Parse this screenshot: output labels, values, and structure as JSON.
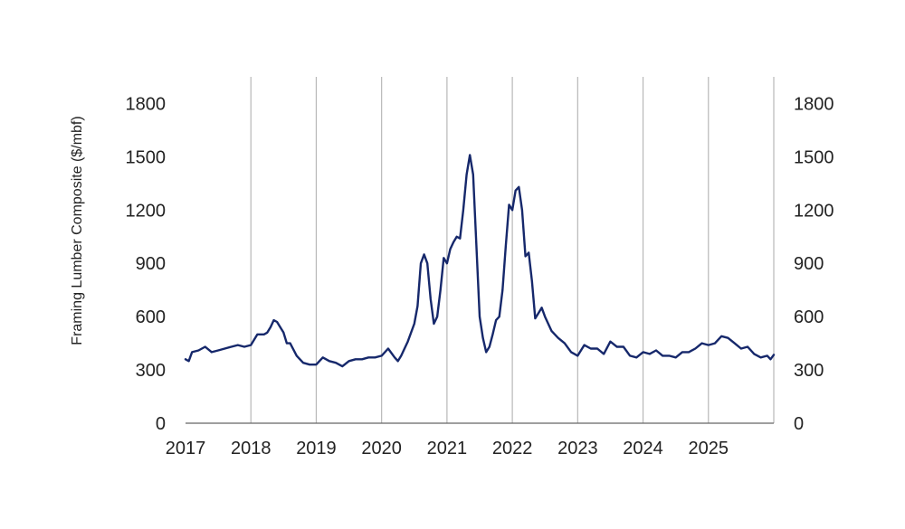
{
  "chart_data": {
    "type": "line",
    "title": "",
    "xlabel": "",
    "ylabel": "Framing Lumber Composite ($/mbf)",
    "xlim": [
      2017,
      2026
    ],
    "ylim": [
      0,
      1950
    ],
    "yticks": [
      0,
      300,
      600,
      900,
      1200,
      1500,
      1800
    ],
    "xticks": [
      2017,
      2018,
      2019,
      2020,
      2021,
      2022,
      2023,
      2024,
      2025
    ],
    "grid": "vertical",
    "secondary_y_axis": true,
    "line_color": "#16286b",
    "grid_color": "#b8b8b8",
    "series": [
      {
        "name": "",
        "x": [
          2017.0,
          2017.05,
          2017.1,
          2017.2,
          2017.3,
          2017.4,
          2017.5,
          2017.6,
          2017.7,
          2017.8,
          2017.9,
          2018.0,
          2018.1,
          2018.2,
          2018.25,
          2018.3,
          2018.35,
          2018.4,
          2018.45,
          2018.5,
          2018.55,
          2018.6,
          2018.7,
          2018.8,
          2018.9,
          2019.0,
          2019.1,
          2019.2,
          2019.3,
          2019.4,
          2019.5,
          2019.6,
          2019.7,
          2019.8,
          2019.9,
          2020.0,
          2020.1,
          2020.2,
          2020.25,
          2020.3,
          2020.4,
          2020.5,
          2020.55,
          2020.6,
          2020.65,
          2020.7,
          2020.75,
          2020.8,
          2020.85,
          2020.9,
          2020.95,
          2021.0,
          2021.05,
          2021.1,
          2021.15,
          2021.2,
          2021.25,
          2021.3,
          2021.35,
          2021.4,
          2021.45,
          2021.5,
          2021.55,
          2021.6,
          2021.65,
          2021.7,
          2021.75,
          2021.8,
          2021.85,
          2021.9,
          2021.95,
          2022.0,
          2022.05,
          2022.1,
          2022.15,
          2022.2,
          2022.25,
          2022.3,
          2022.35,
          2022.4,
          2022.45,
          2022.5,
          2022.6,
          2022.7,
          2022.8,
          2022.9,
          2023.0,
          2023.1,
          2023.2,
          2023.3,
          2023.4,
          2023.5,
          2023.6,
          2023.7,
          2023.8,
          2023.9,
          2024.0,
          2024.1,
          2024.2,
          2024.3,
          2024.4,
          2024.5,
          2024.6,
          2024.7,
          2024.8,
          2024.9,
          2025.0,
          2025.1,
          2025.2,
          2025.3,
          2025.4,
          2025.5,
          2025.6,
          2025.7,
          2025.8,
          2025.9,
          2025.95,
          2026.0
        ],
        "y": [
          360,
          350,
          400,
          410,
          430,
          400,
          410,
          420,
          430,
          440,
          430,
          440,
          500,
          500,
          510,
          540,
          580,
          570,
          540,
          510,
          450,
          450,
          380,
          340,
          330,
          330,
          370,
          350,
          340,
          320,
          350,
          360,
          360,
          370,
          370,
          380,
          420,
          370,
          350,
          380,
          460,
          560,
          660,
          900,
          950,
          900,
          700,
          560,
          600,
          750,
          930,
          900,
          980,
          1020,
          1050,
          1040,
          1200,
          1400,
          1510,
          1400,
          1000,
          600,
          480,
          400,
          430,
          500,
          580,
          600,
          750,
          1000,
          1230,
          1200,
          1310,
          1330,
          1200,
          940,
          960,
          800,
          590,
          620,
          650,
          600,
          520,
          480,
          450,
          400,
          380,
          440,
          420,
          420,
          390,
          460,
          430,
          430,
          380,
          370,
          400,
          390,
          410,
          380,
          380,
          370,
          400,
          400,
          420,
          450,
          440,
          450,
          490,
          480,
          450,
          420,
          430,
          390,
          370,
          380,
          360,
          385
        ]
      }
    ]
  }
}
